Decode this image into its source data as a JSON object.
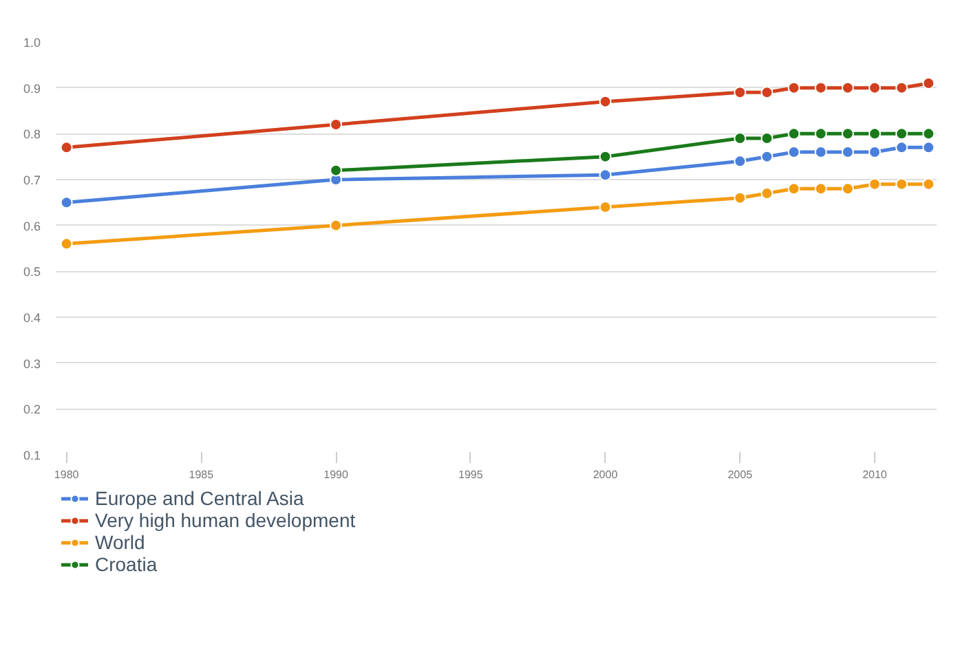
{
  "chart_data": {
    "type": "line",
    "x": [
      1980,
      1990,
      2000,
      2005,
      2006,
      2007,
      2008,
      2009,
      2010,
      2011,
      2012
    ],
    "xlim": [
      1979.6,
      2012.3
    ],
    "xticks": [
      1980,
      1985,
      1990,
      1995,
      2000,
      2005,
      2010
    ],
    "ylim": [
      0.1,
      1.0
    ],
    "yticks": [
      {
        "value": 0.1,
        "label": "0.1"
      },
      {
        "value": 0.2,
        "label": "0.2"
      },
      {
        "value": 0.3,
        "label": "0.3"
      },
      {
        "value": 0.4,
        "label": "0.4"
      },
      {
        "value": 0.5,
        "label": "0.5"
      },
      {
        "value": 0.6,
        "label": "0.6"
      },
      {
        "value": 0.7,
        "label": "0.7"
      },
      {
        "value": 0.8,
        "label": "0.8"
      },
      {
        "value": 0.9,
        "label": "0.9"
      },
      {
        "value": 1.0,
        "label": "1.0"
      }
    ],
    "grid": "y",
    "legend": "bottom left",
    "marker": "circle",
    "line_style": "solid",
    "series": [
      {
        "name": "Europe and Central Asia",
        "color": "#4a7fdc",
        "values": [
          0.65,
          0.7,
          0.71,
          0.74,
          0.75,
          0.76,
          0.76,
          0.76,
          0.76,
          0.77,
          0.77
        ]
      },
      {
        "name": "Very high human development",
        "color": "#d2401e",
        "values": [
          0.77,
          0.82,
          0.87,
          0.89,
          0.89,
          0.9,
          0.9,
          0.9,
          0.9,
          0.9,
          0.91
        ]
      },
      {
        "name": "World",
        "color": "#f39c12",
        "values": [
          0.56,
          0.6,
          0.64,
          0.66,
          0.67,
          0.68,
          0.68,
          0.68,
          0.69,
          0.69,
          0.69
        ]
      },
      {
        "name": "Croatia",
        "color": "#1a7a1a",
        "values": [
          null,
          0.72,
          0.75,
          0.79,
          0.79,
          0.8,
          0.8,
          0.8,
          0.8,
          0.8,
          0.8
        ]
      }
    ]
  }
}
